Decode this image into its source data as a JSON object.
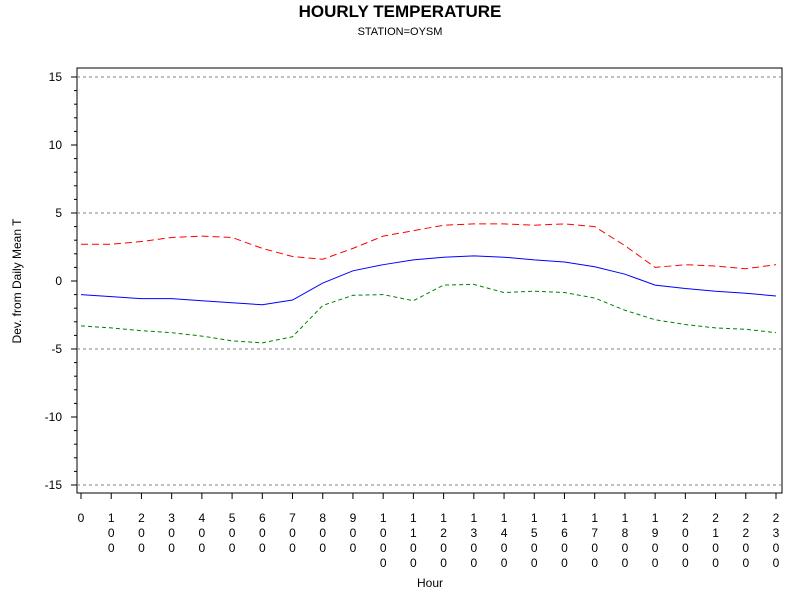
{
  "chart_data": {
    "type": "line",
    "title": "HOURLY TEMPERATURE",
    "subtitle": "STATION=OYSM",
    "xlabel": "Hour",
    "ylabel": "Dev. from Daily Mean T",
    "xlim": [
      0,
      2300
    ],
    "ylim": [
      -15,
      15
    ],
    "yticks": [
      -15,
      -10,
      -5,
      0,
      5,
      10,
      15
    ],
    "reference_lines": [
      -15,
      -5,
      5,
      15
    ],
    "grid": false,
    "legend": "none",
    "x": [
      0,
      100,
      200,
      300,
      400,
      500,
      600,
      700,
      800,
      900,
      1000,
      1100,
      1200,
      1300,
      1400,
      1500,
      1600,
      1700,
      1800,
      1900,
      2000,
      2100,
      2200,
      2300
    ],
    "xtick_labels": [
      "0",
      "100",
      "200",
      "300",
      "400",
      "500",
      "600",
      "700",
      "800",
      "900",
      "1000",
      "1100",
      "1200",
      "1300",
      "1400",
      "1500",
      "1600",
      "1700",
      "1800",
      "1900",
      "2000",
      "2100",
      "2200",
      "2300"
    ],
    "series": [
      {
        "color": "#ff0000",
        "dash": "dashed",
        "values": [
          2.7,
          2.7,
          2.9,
          3.2,
          3.3,
          3.2,
          2.4,
          1.8,
          1.6,
          2.4,
          3.3,
          3.7,
          4.1,
          4.2,
          4.2,
          4.1,
          4.2,
          4.0,
          2.6,
          1.0,
          1.2,
          1.1,
          0.9,
          1.2
        ]
      },
      {
        "color": "#0000ff",
        "dash": "solid",
        "values": [
          -1.0,
          -1.15,
          -1.3,
          -1.3,
          -1.45,
          -1.6,
          -1.75,
          -1.4,
          -0.15,
          0.75,
          1.2,
          1.55,
          1.75,
          1.85,
          1.75,
          1.55,
          1.4,
          1.05,
          0.5,
          -0.3,
          -0.55,
          -0.75,
          -0.9,
          -1.1
        ]
      },
      {
        "color": "#008000",
        "dash": "dotted",
        "values": [
          -3.3,
          -3.45,
          -3.65,
          -3.8,
          -4.05,
          -4.4,
          -4.55,
          -4.1,
          -1.8,
          -1.05,
          -1.0,
          -1.45,
          -0.3,
          -0.25,
          -0.85,
          -0.75,
          -0.85,
          -1.25,
          -2.15,
          -2.85,
          -3.2,
          -3.45,
          -3.55,
          -3.8
        ]
      }
    ]
  }
}
